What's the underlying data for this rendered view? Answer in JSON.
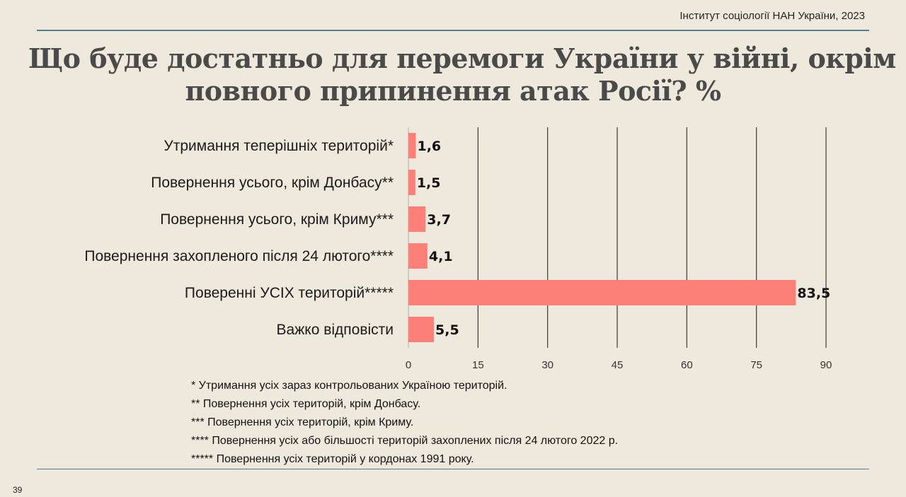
{
  "header": {
    "source": "Інститут соціології НАН України, 2023"
  },
  "title": {
    "line1": "Що буде достатньо для перемоги України у війні, окрім",
    "line2": "повного припинення атак Росії? %"
  },
  "chart_data": {
    "type": "bar",
    "orientation": "horizontal",
    "categories": [
      "Утримання теперішніх територій*",
      "Повернення усього, крім Донбасу**",
      "Повернення усього, крім Криму***",
      "Повернення захопленого після 24 лютого****",
      "Поверенні УСІХ територій*****",
      "Важко відповісти"
    ],
    "values": [
      1.6,
      1.5,
      3.7,
      4.1,
      83.5,
      5.5
    ],
    "value_labels": [
      "1,6",
      "1,5",
      "3,7",
      "4,1",
      "83,5",
      "5,5"
    ],
    "xlim": [
      0,
      90
    ],
    "xticks": [
      "0",
      "15",
      "30",
      "45",
      "60",
      "75",
      "90"
    ],
    "bar_color": "#fc7f78",
    "grid": true
  },
  "footnotes": [
    "* Утримання усіх зараз контрольованих Україною територій.",
    "** Повернення усіх територій, крім Донбасу.",
    "*** Повернення усіх територій, крім Криму.",
    "**** Повернення усіх або більшості територій захоплених після 24 лютого 2022 р.",
    "***** Повернення усіх територій у кордонах 1991 року."
  ],
  "page_number": "39"
}
